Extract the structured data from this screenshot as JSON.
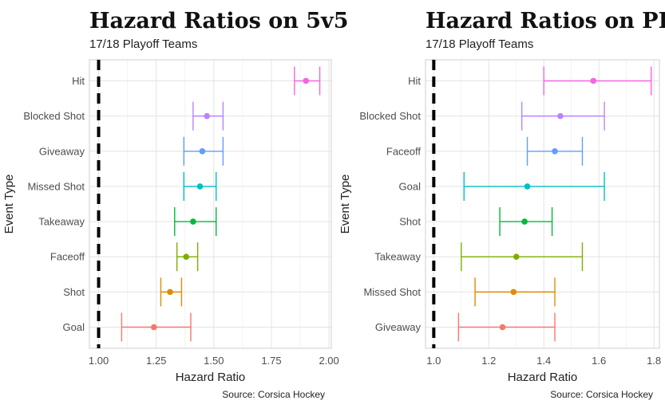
{
  "chart_data": [
    {
      "type": "errorbar",
      "title": "Hazard Ratios on 5v5",
      "subtitle": "17/18 Playoff Teams",
      "xlabel": "Hazard Ratio",
      "ylabel": "Event Type",
      "caption": "Source: Corsica Hockey",
      "xlim": [
        0.96,
        2.01
      ],
      "xticks": [
        1.0,
        1.25,
        1.5,
        1.75,
        2.0
      ],
      "xtick_labels": [
        "1.00",
        "1.25",
        "1.50",
        "1.75",
        "2.00"
      ],
      "reference_line": 1.0,
      "grid": true,
      "categories_top_to_bottom": [
        "Hit",
        "Blocked Shot",
        "Giveaway",
        "Missed Shot",
        "Takeaway",
        "Faceoff",
        "Shot",
        "Goal"
      ],
      "points": [
        {
          "event": "Hit",
          "estimate": 1.9,
          "lower": 1.85,
          "upper": 1.96,
          "color": "#F564E3"
        },
        {
          "event": "Blocked Shot",
          "estimate": 1.47,
          "lower": 1.41,
          "upper": 1.54,
          "color": "#B983FF"
        },
        {
          "event": "Giveaway",
          "estimate": 1.45,
          "lower": 1.37,
          "upper": 1.54,
          "color": "#619CFF"
        },
        {
          "event": "Missed Shot",
          "estimate": 1.44,
          "lower": 1.37,
          "upper": 1.51,
          "color": "#00BFC4"
        },
        {
          "event": "Takeaway",
          "estimate": 1.41,
          "lower": 1.33,
          "upper": 1.51,
          "color": "#00BA38"
        },
        {
          "event": "Faceoff",
          "estimate": 1.38,
          "lower": 1.34,
          "upper": 1.43,
          "color": "#7CAE00"
        },
        {
          "event": "Shot",
          "estimate": 1.31,
          "lower": 1.27,
          "upper": 1.36,
          "color": "#DE8C00"
        },
        {
          "event": "Goal",
          "estimate": 1.24,
          "lower": 1.1,
          "upper": 1.4,
          "color": "#F8766D"
        }
      ]
    },
    {
      "type": "errorbar",
      "title": "Hazard Ratios on PP",
      "subtitle": "17/18 Playoff Teams",
      "xlabel": "Hazard Ratio",
      "ylabel": "Event Type",
      "caption": "Source: Corsica Hockey",
      "xlim": [
        0.97,
        1.82
      ],
      "xticks": [
        1.0,
        1.2,
        1.4,
        1.6,
        1.8
      ],
      "xtick_labels": [
        "1.0",
        "1.2",
        "1.4",
        "1.6",
        "1.8"
      ],
      "reference_line": 1.0,
      "grid": true,
      "categories_top_to_bottom": [
        "Hit",
        "Blocked Shot",
        "Faceoff",
        "Goal",
        "Shot",
        "Takeaway",
        "Missed Shot",
        "Giveaway"
      ],
      "points": [
        {
          "event": "Hit",
          "estimate": 1.58,
          "lower": 1.4,
          "upper": 1.79,
          "color": "#F564E3"
        },
        {
          "event": "Blocked Shot",
          "estimate": 1.46,
          "lower": 1.32,
          "upper": 1.62,
          "color": "#B983FF"
        },
        {
          "event": "Faceoff",
          "estimate": 1.44,
          "lower": 1.34,
          "upper": 1.54,
          "color": "#619CFF"
        },
        {
          "event": "Goal",
          "estimate": 1.34,
          "lower": 1.11,
          "upper": 1.62,
          "color": "#00BFC4"
        },
        {
          "event": "Shot",
          "estimate": 1.33,
          "lower": 1.24,
          "upper": 1.43,
          "color": "#00BA38"
        },
        {
          "event": "Takeaway",
          "estimate": 1.3,
          "lower": 1.1,
          "upper": 1.54,
          "color": "#7CAE00"
        },
        {
          "event": "Missed Shot",
          "estimate": 1.29,
          "lower": 1.15,
          "upper": 1.44,
          "color": "#DE8C00"
        },
        {
          "event": "Giveaway",
          "estimate": 1.25,
          "lower": 1.09,
          "upper": 1.44,
          "color": "#F8766D"
        }
      ]
    }
  ]
}
